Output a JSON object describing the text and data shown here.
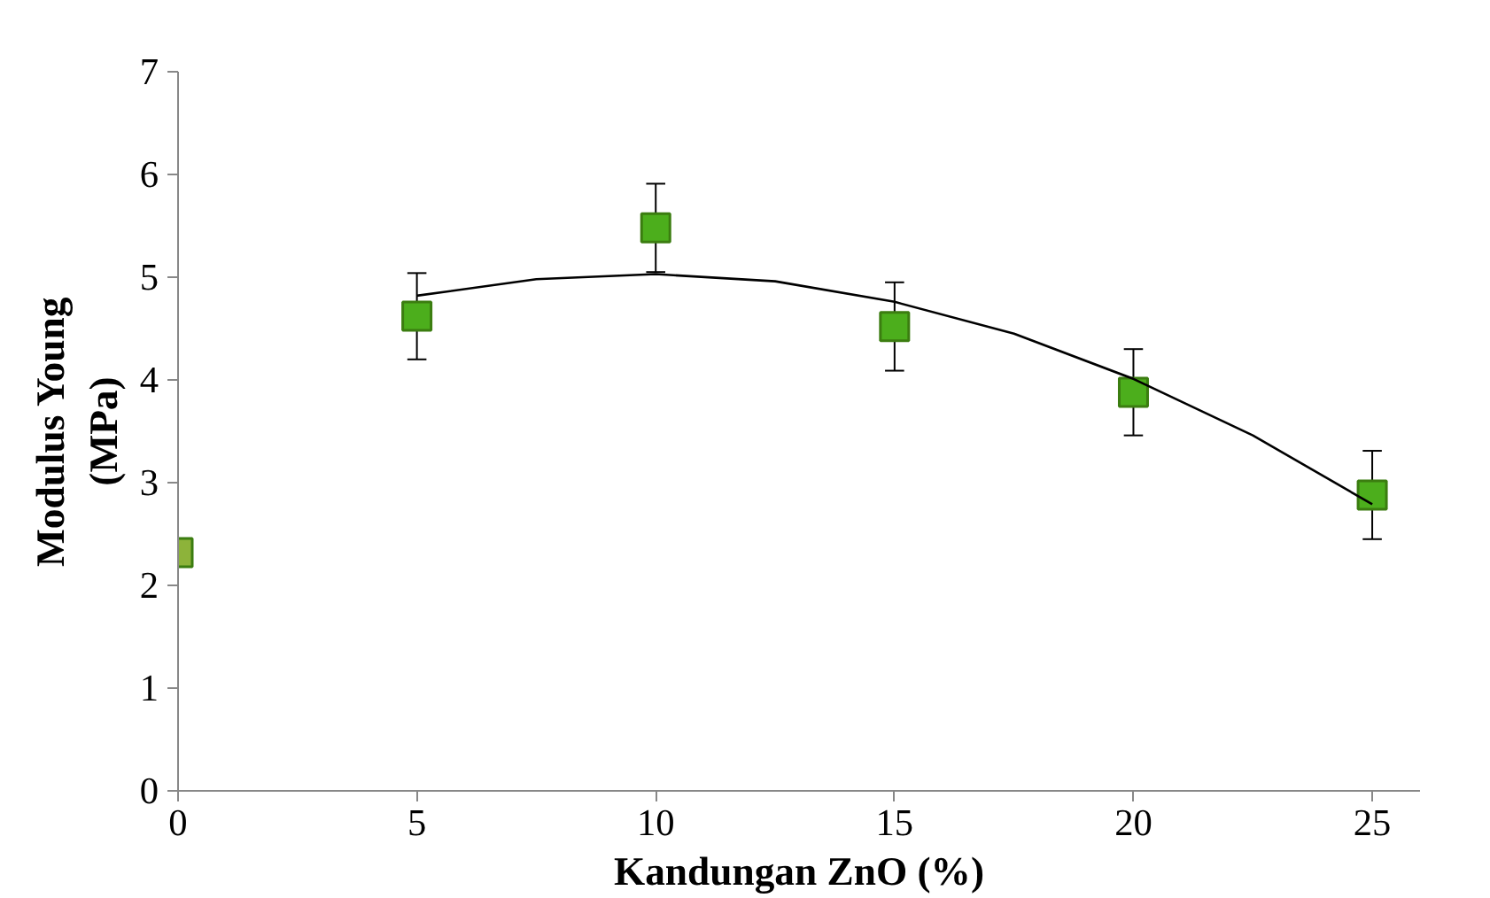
{
  "chart_data": {
    "type": "scatter",
    "xlabel": "Kandungan ZnO (%)",
    "ylabel": "Modulus Young\n(MPa)",
    "xlim": [
      0,
      26
    ],
    "ylim": [
      0,
      7
    ],
    "xticks": [
      0,
      5,
      10,
      15,
      20,
      25
    ],
    "yticks": [
      0,
      1,
      2,
      3,
      4,
      5,
      6,
      7
    ],
    "grid": false,
    "series": [
      {
        "marker": "square",
        "x": [
          0,
          5,
          10,
          15,
          20,
          25
        ],
        "values": [
          2.32,
          4.62,
          5.48,
          4.52,
          3.88,
          2.88
        ],
        "colors": [
          "#8db33a",
          "#4cae1c",
          "#4cae1c",
          "#4cae1c",
          "#4cae1c",
          "#4cae1c"
        ],
        "errors": [
          null,
          0.42,
          0.43,
          0.43,
          0.42,
          0.43
        ]
      },
      {
        "type": "line",
        "color": "#000000",
        "line_style": "solid",
        "x": [
          5,
          7.5,
          10,
          12.5,
          15,
          17.5,
          20,
          22.5,
          25
        ],
        "values": [
          4.82,
          4.98,
          5.03,
          4.96,
          4.76,
          4.45,
          4.01,
          3.46,
          2.79
        ]
      }
    ]
  }
}
